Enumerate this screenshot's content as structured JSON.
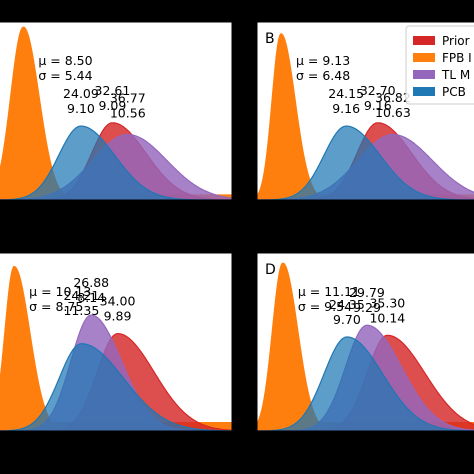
{
  "chart_data": [
    {
      "type": "area",
      "panel_label": "",
      "ylim": [
        0,
        0.106
      ],
      "xlim": [
        0,
        65
      ],
      "stats": {
        "mu": "μ = 8.50",
        "sigma": "σ = 5.44"
      },
      "series": [
        {
          "name": "Prior",
          "color": "#d62728",
          "peak_x": 32.61,
          "peak_y": 0.046,
          "left_sd": 5.6,
          "right_sd": 9.09
        },
        {
          "name": "FPB",
          "color": "#ff7f0e",
          "peak_x": 8.5,
          "peak_y": 0.103,
          "left_sd": 3.4,
          "right_sd": 4.2,
          "tail": 0.003
        },
        {
          "name": "TL",
          "color": "#9467bd",
          "peak_x": 36.77,
          "peak_y": 0.039,
          "left_sd": 9.5,
          "right_sd": 10.56
        },
        {
          "name": "PCB",
          "color": "#1f77b4",
          "peak_x": 24.09,
          "peak_y": 0.044,
          "left_sd": 6.0,
          "right_sd": 9.1
        }
      ],
      "annotations": [
        {
          "line1": "24.09",
          "line2": "9.10",
          "x": 24.09
        },
        {
          "line1": "32.61",
          "line2": "9.09",
          "x": 32.61
        },
        {
          "line1": "36.77",
          "line2": "10.56",
          "x": 36.77
        }
      ]
    },
    {
      "type": "area",
      "panel_label": "B",
      "ylim": [
        0,
        0.106
      ],
      "xlim": [
        0,
        65
      ],
      "stats": {
        "mu": "μ = 9.13",
        "sigma": "σ = 6.48"
      },
      "series": [
        {
          "name": "Prior",
          "color": "#d62728",
          "peak_x": 32.7,
          "peak_y": 0.046,
          "left_sd": 5.6,
          "right_sd": 9.16
        },
        {
          "name": "FPB",
          "color": "#ff7f0e",
          "peak_x": 6.5,
          "peak_y": 0.099,
          "left_sd": 2.4,
          "right_sd": 3.8,
          "tail": 0.003
        },
        {
          "name": "TL",
          "color": "#9467bd",
          "peak_x": 36.82,
          "peak_y": 0.039,
          "left_sd": 9.5,
          "right_sd": 10.63
        },
        {
          "name": "PCB",
          "color": "#1f77b4",
          "peak_x": 24.15,
          "peak_y": 0.044,
          "left_sd": 6.0,
          "right_sd": 9.16
        }
      ],
      "annotations": [
        {
          "line1": "24.15",
          "line2": "9.16",
          "x": 24.15
        },
        {
          "line1": "32.70",
          "line2": "9.16",
          "x": 32.7
        },
        {
          "line1": "36.82",
          "line2": "10.63",
          "x": 36.82
        }
      ],
      "legend": {
        "placement": "top-right",
        "entries": [
          {
            "label": "Prior",
            "color": "#d62728"
          },
          {
            "label": "FPB I",
            "color": "#ff7f0e"
          },
          {
            "label": "TL M",
            "color": "#9467bd"
          },
          {
            "label": "PCB",
            "color": "#1f77b4"
          }
        ]
      }
    },
    {
      "type": "area",
      "panel_label": "",
      "ylim": [
        0,
        0.106
      ],
      "xlim": [
        0,
        65
      ],
      "stats": {
        "mu": "μ = 10.13",
        "sigma": "σ = 8.75"
      },
      "series": [
        {
          "name": "Prior",
          "color": "#d62728",
          "peak_x": 34.0,
          "peak_y": 0.058,
          "left_sd": 5.5,
          "right_sd": 9.89
        },
        {
          "name": "FPB",
          "color": "#ff7f0e",
          "peak_x": 6.0,
          "peak_y": 0.098,
          "left_sd": 2.5,
          "right_sd": 4.2,
          "tail": 0.005
        },
        {
          "name": "TL",
          "color": "#9467bd",
          "peak_x": 26.88,
          "peak_y": 0.069,
          "left_sd": 5.5,
          "right_sd": 8.14
        },
        {
          "name": "PCB",
          "color": "#1f77b4",
          "peak_x": 24.21,
          "peak_y": 0.052,
          "left_sd": 6.0,
          "right_sd": 11.35
        }
      ],
      "annotations": [
        {
          "line1": "24.21",
          "line2": "11.35",
          "x": 24.21
        },
        {
          "line1": "26.88",
          "line2": "8.14",
          "x": 26.88
        },
        {
          "line1": "34.00",
          "line2": "9.89",
          "x": 34.0
        }
      ]
    },
    {
      "type": "area",
      "panel_label": "D",
      "ylim": [
        0,
        0.106
      ],
      "xlim": [
        0,
        65
      ],
      "stats": {
        "mu": "μ = 11.11",
        "sigma": "σ = 9.54"
      },
      "series": [
        {
          "name": "Prior",
          "color": "#d62728",
          "peak_x": 35.3,
          "peak_y": 0.057,
          "left_sd": 5.5,
          "right_sd": 10.14
        },
        {
          "name": "FPB",
          "color": "#ff7f0e",
          "peak_x": 7.0,
          "peak_y": 0.1,
          "left_sd": 2.8,
          "right_sd": 4.0,
          "tail": 0.005
        },
        {
          "name": "TL",
          "color": "#9467bd",
          "peak_x": 29.79,
          "peak_y": 0.063,
          "left_sd": 5.8,
          "right_sd": 9.29
        },
        {
          "name": "PCB",
          "color": "#1f77b4",
          "peak_x": 24.35,
          "peak_y": 0.056,
          "left_sd": 6.2,
          "right_sd": 9.7
        }
      ],
      "annotations": [
        {
          "line1": "24.35",
          "line2": "9.70",
          "x": 24.35
        },
        {
          "line1": "29.79",
          "line2": "9.29",
          "x": 29.79
        },
        {
          "line1": "35.30",
          "line2": "10.14",
          "x": 35.3
        }
      ]
    }
  ]
}
